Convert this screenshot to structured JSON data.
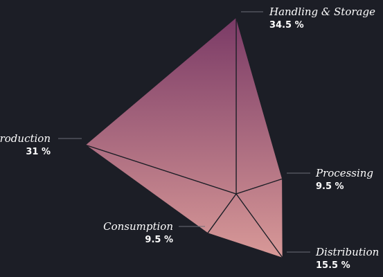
{
  "chart_data": {
    "type": "polar-area",
    "categories": [
      "Handling & Storage",
      "Processing",
      "Distribution",
      "Consumption",
      "Production"
    ],
    "values": [
      34.5,
      9.5,
      15.5,
      9.5,
      31
    ],
    "value_suffix": " %",
    "labels": [
      {
        "category": "Handling & Storage",
        "value": "34.5 %"
      },
      {
        "category": "Processing",
        "value": "9.5 %"
      },
      {
        "category": "Distribution",
        "value": "15.5 %"
      },
      {
        "category": "Consumption",
        "value": "9.5 %"
      },
      {
        "category": "Production",
        "value": "31 %"
      }
    ],
    "colors": {
      "background": "#1c1e26",
      "gradient_top": "#7a3a66",
      "gradient_bottom": "#d99a98",
      "text": "#ffffff"
    }
  }
}
